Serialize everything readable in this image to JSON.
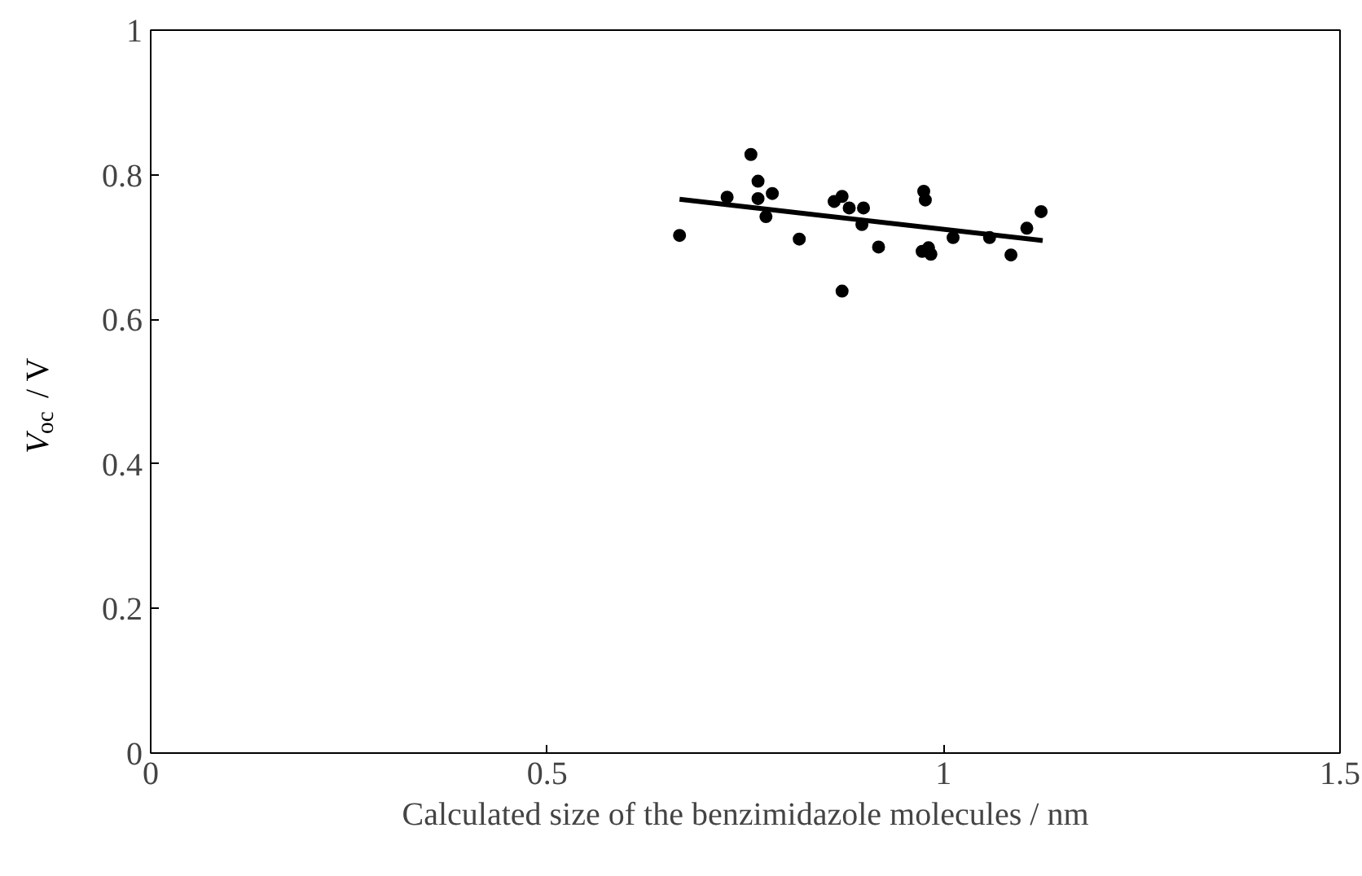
{
  "chart_data": {
    "type": "scatter",
    "xlabel": "Calculated size of the benzimidazole molecules / nm",
    "ylabel": "V$_{oc}$ / V",
    "xlim": [
      0,
      1.5
    ],
    "ylim": [
      0,
      1
    ],
    "xticks": [
      0,
      0.5,
      1,
      1.5
    ],
    "yticks": [
      0,
      0.2,
      0.4,
      0.6,
      0.8,
      1
    ],
    "grid": false,
    "marker": "circle",
    "series": [
      {
        "color": "#000000",
        "x": [
          0.667,
          0.727,
          0.757,
          0.766,
          0.766,
          0.784,
          0.776,
          0.818,
          0.862,
          0.872,
          0.872,
          0.881,
          0.899,
          0.897,
          0.918,
          0.975,
          0.977,
          0.973,
          0.981,
          0.984,
          1.012,
          1.058,
          1.085,
          1.105,
          1.123
        ],
        "values": [
          0.716,
          0.769,
          0.828,
          0.791,
          0.767,
          0.774,
          0.742,
          0.711,
          0.763,
          0.77,
          0.639,
          0.754,
          0.754,
          0.731,
          0.7,
          0.777,
          0.765,
          0.694,
          0.699,
          0.69,
          0.713,
          0.713,
          0.689,
          0.726,
          0.749
        ]
      },
      {
        "type": "line",
        "marker": "none",
        "color": "#000000",
        "x": [
          0.667,
          1.125
        ],
        "values": [
          0.766,
          0.709
        ]
      }
    ]
  }
}
